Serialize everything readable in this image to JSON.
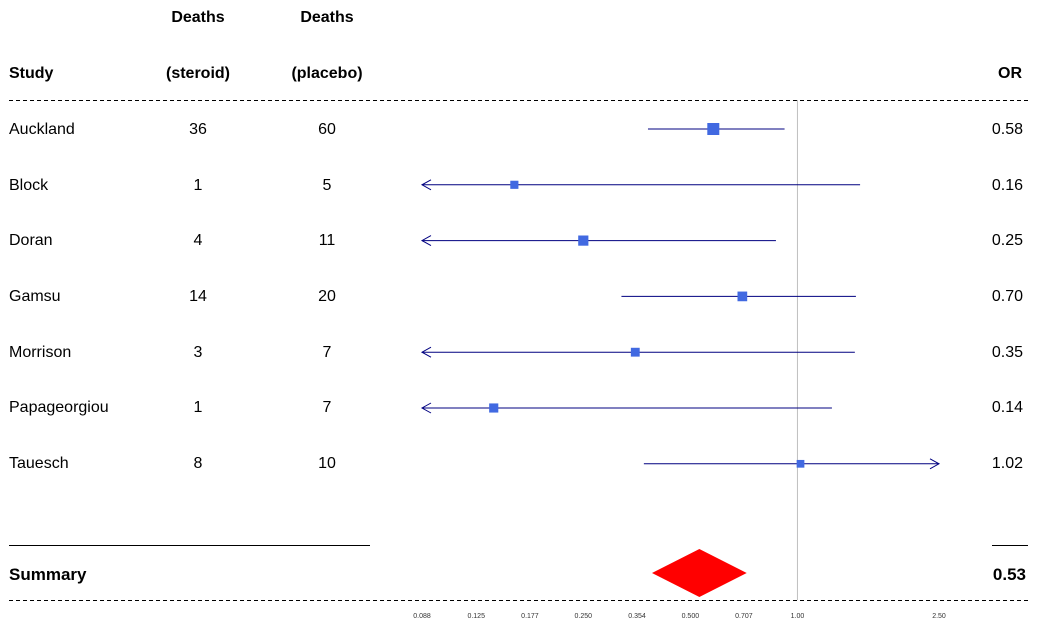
{
  "headers": {
    "study": "Study",
    "deaths_steroid_line1": "Deaths",
    "deaths_steroid_line2": "(steroid)",
    "deaths_placebo_line1": "Deaths",
    "deaths_placebo_line2": "(placebo)",
    "or": "OR"
  },
  "chart_data": {
    "type": "forest",
    "scale": "log",
    "xlim": [
      0.088,
      2.5
    ],
    "reference_line": 1.0,
    "ticks": [
      "0.088",
      "0.125",
      "0.177",
      "0.250",
      "0.354",
      "0.500",
      "0.707",
      "1.00",
      "2.50"
    ],
    "colors": {
      "box": "#4169e1",
      "ci_line": "#000080",
      "summary": "#ff0000",
      "reference": "#bfbfbf"
    },
    "studies": [
      {
        "name": "Auckland",
        "steroid": "36",
        "placebo": "60",
        "or": 0.58,
        "or_label": "0.58",
        "lower": 0.38,
        "upper": 0.92,
        "weight": 1.0
      },
      {
        "name": "Block",
        "steroid": "1",
        "placebo": "5",
        "or": 0.16,
        "or_label": "0.16",
        "lower": 0.088,
        "upper": 1.5,
        "weight": 0.2,
        "arrow_low": true
      },
      {
        "name": "Doran",
        "steroid": "4",
        "placebo": "11",
        "or": 0.25,
        "or_label": "0.25",
        "lower": 0.088,
        "upper": 0.87,
        "weight": 0.55,
        "arrow_low": true
      },
      {
        "name": "Gamsu",
        "steroid": "14",
        "placebo": "20",
        "or": 0.7,
        "or_label": "0.70",
        "lower": 0.32,
        "upper": 1.46,
        "weight": 0.45
      },
      {
        "name": "Morrison",
        "steroid": "3",
        "placebo": "7",
        "or": 0.35,
        "or_label": "0.35",
        "lower": 0.088,
        "upper": 1.45,
        "weight": 0.3,
        "arrow_low": true
      },
      {
        "name": "Papageorgiou",
        "steroid": "1",
        "placebo": "7",
        "or": 0.14,
        "or_label": "0.14",
        "lower": 0.088,
        "upper": 1.25,
        "weight": 0.35,
        "arrow_low": true
      },
      {
        "name": "Tauesch",
        "steroid": "8",
        "placebo": "10",
        "or": 1.02,
        "or_label": "1.02",
        "lower": 0.37,
        "upper": 2.5,
        "weight": 0.15,
        "arrow_high": true
      }
    ],
    "summary": {
      "label": "Summary",
      "or": 0.53,
      "or_label": "0.53",
      "lower": 0.39,
      "upper": 0.72
    }
  }
}
